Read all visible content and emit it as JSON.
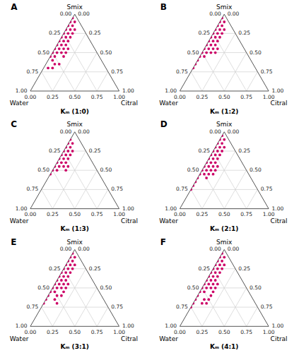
{
  "chart_data": [
    {
      "type": "ternary",
      "title": "A",
      "subtitle": "Kₘ (1:0)",
      "xlabel": "Citral",
      "ylabel": "Smix",
      "zlabel": "Water",
      "color": "#CC0066",
      "grid": true,
      "xlim": [
        0,
        1
      ],
      "ylim": [
        0,
        1
      ],
      "xticks": [
        {
          "value": 0,
          "label": "0.00"
        },
        {
          "value": 0.25,
          "label": "0.25"
        },
        {
          "value": 0.5,
          "label": "0.50"
        },
        {
          "value": 0.75,
          "label": "0.75"
        },
        {
          "value": 1,
          "label": "1.00"
        }
      ],
      "yticks": [
        {
          "value": 0,
          "label": "0.00"
        },
        {
          "value": 0.25,
          "label": "0.25"
        },
        {
          "value": 0.5,
          "label": "0.50"
        },
        {
          "value": 0.75,
          "label": "0.75"
        },
        {
          "value": 1,
          "label": "1.00"
        }
      ],
      "y2ticks": [
        {
          "value": 0,
          "label": "0.00"
        },
        {
          "value": 0.25,
          "label": "0.25"
        },
        {
          "value": 0.5,
          "label": "0.50"
        },
        {
          "value": 0.75,
          "label": "0.75"
        },
        {
          "value": 1,
          "label": "1.00"
        }
      ],
      "values": [
        0.95,
        0.9,
        0.9,
        0.85,
        0.8,
        0.85,
        0.8,
        0.75,
        0.8,
        0.75,
        0.7,
        0.75,
        0.7,
        0.65,
        0.7,
        0.65,
        0.6,
        0.65,
        0.6,
        0.55,
        0.6,
        0.55,
        0.5,
        0.55,
        0.5,
        0.5,
        0.45,
        0.45,
        0.4,
        0.35,
        0.3,
        0.3,
        0.55,
        0.5,
        0.45,
        0.35
      ],
      "x": [
        0.0,
        0.05,
        0.0,
        0.05,
        0.1,
        0.0,
        0.05,
        0.1,
        0.0,
        0.05,
        0.1,
        0.0,
        0.05,
        0.1,
        0.0,
        0.05,
        0.1,
        0.0,
        0.05,
        0.1,
        0.0,
        0.05,
        0.1,
        0.0,
        0.05,
        0.0,
        0.05,
        0.0,
        0.05,
        0.1,
        0.1,
        0.05,
        0.15,
        0.15,
        0.15,
        0.15
      ]
    },
    {
      "type": "ternary",
      "title": "B",
      "subtitle": "Kₘ (1:2)",
      "xlabel": "Citral",
      "ylabel": "Smix",
      "zlabel": "Water",
      "color": "#CC0066",
      "grid": true,
      "xlim": [
        0,
        1
      ],
      "ylim": [
        0,
        1
      ],
      "xticks": [
        {
          "value": 0,
          "label": "0.00"
        },
        {
          "value": 0.25,
          "label": "0.25"
        },
        {
          "value": 0.5,
          "label": "0.50"
        },
        {
          "value": 0.75,
          "label": "0.75"
        },
        {
          "value": 1,
          "label": "1.00"
        }
      ],
      "yticks": [
        {
          "value": 0,
          "label": "0.00"
        },
        {
          "value": 0.25,
          "label": "0.25"
        },
        {
          "value": 0.5,
          "label": "0.50"
        },
        {
          "value": 0.75,
          "label": "0.75"
        },
        {
          "value": 1,
          "label": "1.00"
        }
      ],
      "y2ticks": [
        {
          "value": 0,
          "label": "0.00"
        },
        {
          "value": 0.25,
          "label": "0.25"
        },
        {
          "value": 0.5,
          "label": "0.50"
        },
        {
          "value": 0.75,
          "label": "0.75"
        },
        {
          "value": 1,
          "label": "1.00"
        }
      ],
      "values": [
        0.95,
        0.9,
        0.9,
        0.85,
        0.8,
        0.85,
        0.8,
        0.75,
        0.8,
        0.75,
        0.7,
        0.75,
        0.7,
        0.65,
        0.7,
        0.65,
        0.6,
        0.65,
        0.6,
        0.55,
        0.6,
        0.55,
        0.5,
        0.55,
        0.5,
        0.5,
        0.45,
        0.45,
        0.4,
        0.35,
        0.3,
        0.55,
        0.5
      ],
      "x": [
        0.0,
        0.05,
        0.0,
        0.05,
        0.1,
        0.0,
        0.05,
        0.1,
        0.0,
        0.05,
        0.1,
        0.0,
        0.05,
        0.1,
        0.0,
        0.05,
        0.1,
        0.0,
        0.05,
        0.1,
        0.0,
        0.05,
        0.1,
        0.0,
        0.05,
        0.0,
        0.05,
        0.0,
        0.0,
        0.0,
        0.0,
        0.15,
        0.15
      ]
    },
    {
      "type": "ternary",
      "title": "C",
      "subtitle": "Kₘ (1:3)",
      "xlabel": "Citral",
      "ylabel": "Smix",
      "zlabel": "Water",
      "color": "#CC0066",
      "grid": true,
      "xlim": [
        0,
        1
      ],
      "ylim": [
        0,
        1
      ],
      "xticks": [
        {
          "value": 0,
          "label": "0.00"
        },
        {
          "value": 0.25,
          "label": "0.25"
        },
        {
          "value": 0.5,
          "label": "0.50"
        },
        {
          "value": 0.75,
          "label": "0.75"
        },
        {
          "value": 1,
          "label": "1.00"
        }
      ],
      "yticks": [
        {
          "value": 0,
          "label": "0.00"
        },
        {
          "value": 0.25,
          "label": "0.25"
        },
        {
          "value": 0.5,
          "label": "0.50"
        },
        {
          "value": 0.75,
          "label": "0.75"
        },
        {
          "value": 1,
          "label": "1.00"
        }
      ],
      "y2ticks": [
        {
          "value": 0,
          "label": "0.00"
        },
        {
          "value": 0.25,
          "label": "0.25"
        },
        {
          "value": 0.5,
          "label": "0.50"
        },
        {
          "value": 0.75,
          "label": "0.75"
        },
        {
          "value": 1,
          "label": "1.00"
        }
      ],
      "values": [
        0.9,
        0.85,
        0.85,
        0.8,
        0.75,
        0.8,
        0.75,
        0.7,
        0.75,
        0.7,
        0.65,
        0.7,
        0.65,
        0.6,
        0.65,
        0.6,
        0.55,
        0.6,
        0.55,
        0.55,
        0.5,
        0.5,
        0.45,
        0.55,
        0.5
      ],
      "x": [
        0.0,
        0.05,
        0.0,
        0.05,
        0.1,
        0.0,
        0.05,
        0.1,
        0.0,
        0.05,
        0.1,
        0.0,
        0.05,
        0.1,
        0.0,
        0.05,
        0.1,
        0.0,
        0.05,
        0.0,
        0.05,
        0.0,
        0.0,
        0.15,
        0.15
      ]
    },
    {
      "type": "ternary",
      "title": "D",
      "subtitle": "Kₘ (2:1)",
      "xlabel": "Citral",
      "ylabel": "Smix",
      "zlabel": "Water",
      "color": "#CC0066",
      "grid": true,
      "xlim": [
        0,
        1
      ],
      "ylim": [
        0,
        1
      ],
      "xticks": [
        {
          "value": 0,
          "label": "0.00"
        },
        {
          "value": 0.25,
          "label": "0.25"
        },
        {
          "value": 0.5,
          "label": "0.50"
        },
        {
          "value": 0.75,
          "label": "0.75"
        },
        {
          "value": 1,
          "label": "1.00"
        }
      ],
      "yticks": [
        {
          "value": 0,
          "label": "0.00"
        },
        {
          "value": 0.25,
          "label": "0.25"
        },
        {
          "value": 0.5,
          "label": "0.50"
        },
        {
          "value": 0.75,
          "label": "0.75"
        },
        {
          "value": 1,
          "label": "1.00"
        }
      ],
      "y2ticks": [
        {
          "value": 0,
          "label": "0.00"
        },
        {
          "value": 0.25,
          "label": "0.25"
        },
        {
          "value": 0.5,
          "label": "0.50"
        },
        {
          "value": 0.75,
          "label": "0.75"
        },
        {
          "value": 1,
          "label": "1.00"
        }
      ],
      "values": [
        0.95,
        0.9,
        0.9,
        0.85,
        0.8,
        0.85,
        0.8,
        0.75,
        0.8,
        0.75,
        0.7,
        0.75,
        0.7,
        0.65,
        0.7,
        0.65,
        0.6,
        0.65,
        0.6,
        0.55,
        0.6,
        0.55,
        0.5,
        0.55,
        0.5,
        0.5,
        0.45,
        0.45,
        0.4,
        0.35,
        0.3,
        0.25,
        0.55,
        0.5,
        0.45,
        0.45,
        0.4
      ],
      "x": [
        0.0,
        0.05,
        0.0,
        0.05,
        0.1,
        0.0,
        0.05,
        0.1,
        0.0,
        0.05,
        0.1,
        0.0,
        0.05,
        0.1,
        0.0,
        0.05,
        0.1,
        0.0,
        0.05,
        0.1,
        0.0,
        0.05,
        0.1,
        0.0,
        0.05,
        0.0,
        0.05,
        0.0,
        0.0,
        0.0,
        0.0,
        0.0,
        0.15,
        0.15,
        0.15,
        0.1,
        0.1
      ]
    },
    {
      "type": "ternary",
      "title": "E",
      "subtitle": "Kₘ (3:1)",
      "xlabel": "Citral",
      "ylabel": "Smix",
      "zlabel": "Water",
      "color": "#CC0066",
      "grid": true,
      "xlim": [
        0,
        1
      ],
      "ylim": [
        0,
        1
      ],
      "xticks": [
        {
          "value": 0,
          "label": "0.00"
        },
        {
          "value": 0.25,
          "label": "0.25"
        },
        {
          "value": 0.5,
          "label": "0.50"
        },
        {
          "value": 0.75,
          "label": "0.75"
        },
        {
          "value": 1,
          "label": "1.00"
        }
      ],
      "yticks": [
        {
          "value": 0,
          "label": "0.00"
        },
        {
          "value": 0.25,
          "label": "0.25"
        },
        {
          "value": 0.5,
          "label": "0.50"
        },
        {
          "value": 0.75,
          "label": "0.75"
        },
        {
          "value": 1,
          "label": "1.00"
        }
      ],
      "y2ticks": [
        {
          "value": 0,
          "label": "0.00"
        },
        {
          "value": 0.25,
          "label": "0.25"
        },
        {
          "value": 0.5,
          "label": "0.50"
        },
        {
          "value": 0.75,
          "label": "0.75"
        },
        {
          "value": 1,
          "label": "1.00"
        }
      ],
      "values": [
        0.95,
        0.9,
        0.9,
        0.85,
        0.8,
        0.85,
        0.8,
        0.75,
        0.8,
        0.75,
        0.7,
        0.75,
        0.7,
        0.65,
        0.7,
        0.65,
        0.6,
        0.65,
        0.6,
        0.55,
        0.6,
        0.55,
        0.5,
        0.55,
        0.5,
        0.5,
        0.45,
        0.45,
        0.4,
        0.35,
        0.3,
        0.55,
        0.5,
        0.45,
        0.4,
        0.4,
        0.35,
        0.3
      ],
      "x": [
        0.0,
        0.05,
        0.0,
        0.05,
        0.1,
        0.0,
        0.05,
        0.1,
        0.0,
        0.05,
        0.1,
        0.0,
        0.05,
        0.1,
        0.0,
        0.05,
        0.1,
        0.0,
        0.05,
        0.1,
        0.0,
        0.05,
        0.1,
        0.0,
        0.05,
        0.0,
        0.05,
        0.0,
        0.0,
        0.0,
        0.0,
        0.15,
        0.15,
        0.15,
        0.15,
        0.1,
        0.1,
        0.15
      ]
    },
    {
      "type": "ternary",
      "title": "F",
      "subtitle": "Kₘ (4:1)",
      "xlabel": "Citral",
      "ylabel": "Smix",
      "zlabel": "Water",
      "color": "#CC0066",
      "grid": true,
      "xlim": [
        0,
        1
      ],
      "ylim": [
        0,
        1
      ],
      "xticks": [
        {
          "value": 0,
          "label": "0.00"
        },
        {
          "value": 0.25,
          "label": "0.25"
        },
        {
          "value": 0.5,
          "label": "0.50"
        },
        {
          "value": 0.75,
          "label": "0.75"
        },
        {
          "value": 1,
          "label": "1.00"
        }
      ],
      "yticks": [
        {
          "value": 0,
          "label": "0.00"
        },
        {
          "value": 0.25,
          "label": "0.25"
        },
        {
          "value": 0.5,
          "label": "0.50"
        },
        {
          "value": 0.75,
          "label": "0.75"
        },
        {
          "value": 1,
          "label": "1.00"
        }
      ],
      "y2ticks": [
        {
          "value": 0,
          "label": "0.00"
        },
        {
          "value": 0.25,
          "label": "0.25"
        },
        {
          "value": 0.5,
          "label": "0.50"
        },
        {
          "value": 0.75,
          "label": "0.75"
        },
        {
          "value": 1,
          "label": "1.00"
        }
      ],
      "values": [
        0.95,
        0.9,
        0.9,
        0.85,
        0.8,
        0.85,
        0.8,
        0.75,
        0.8,
        0.75,
        0.7,
        0.75,
        0.7,
        0.65,
        0.7,
        0.65,
        0.6,
        0.65,
        0.6,
        0.55,
        0.6,
        0.55,
        0.5,
        0.55,
        0.5,
        0.5,
        0.45,
        0.45,
        0.4,
        0.35,
        0.3,
        0.25,
        0.55,
        0.5,
        0.45,
        0.4,
        0.35,
        0.35,
        0.3,
        0.3
      ],
      "x": [
        0.0,
        0.05,
        0.0,
        0.05,
        0.1,
        0.0,
        0.05,
        0.1,
        0.0,
        0.05,
        0.1,
        0.0,
        0.05,
        0.1,
        0.0,
        0.05,
        0.1,
        0.0,
        0.05,
        0.1,
        0.0,
        0.05,
        0.1,
        0.0,
        0.05,
        0.0,
        0.05,
        0.0,
        0.0,
        0.0,
        0.0,
        0.0,
        0.15,
        0.15,
        0.15,
        0.15,
        0.15,
        0.1,
        0.15,
        0.1
      ]
    }
  ]
}
